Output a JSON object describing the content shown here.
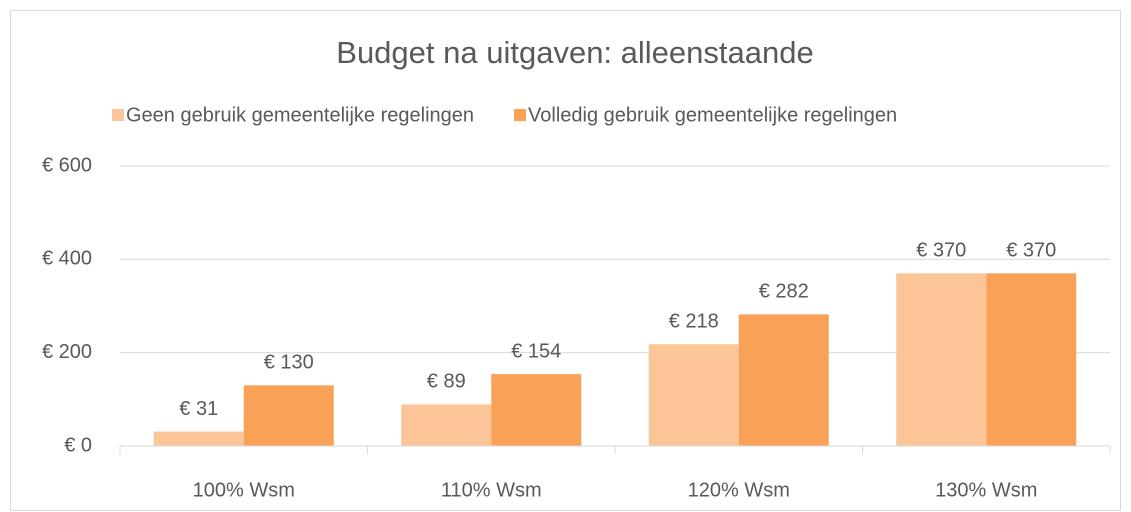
{
  "chart_data": {
    "type": "bar",
    "title": "Budget na uitgaven: alleenstaande",
    "categories": [
      "100% Wsm",
      "110% Wsm",
      "120% Wsm",
      "130% Wsm"
    ],
    "series": [
      {
        "name": "Geen gebruik gemeentelijke regelingen",
        "color": "#fbc597",
        "values": [
          31,
          89,
          218,
          370
        ],
        "value_labels": [
          "€ 31",
          "€ 89",
          "€ 218",
          "€ 370"
        ]
      },
      {
        "name": "Volledig gebruik gemeentelijke regelingen",
        "color": "#f9a257",
        "values": [
          130,
          154,
          282,
          370
        ],
        "value_labels": [
          "€ 130",
          "€ 154",
          "€ 282",
          "€ 370"
        ]
      }
    ],
    "ylim": [
      0,
      600
    ],
    "yticks": [
      {
        "value": 0,
        "label": "€ 0"
      },
      {
        "value": 200,
        "label": "€ 200"
      },
      {
        "value": 400,
        "label": "€ 400"
      },
      {
        "value": 600,
        "label": "€ 600"
      }
    ],
    "grid": true,
    "legend": "top"
  }
}
